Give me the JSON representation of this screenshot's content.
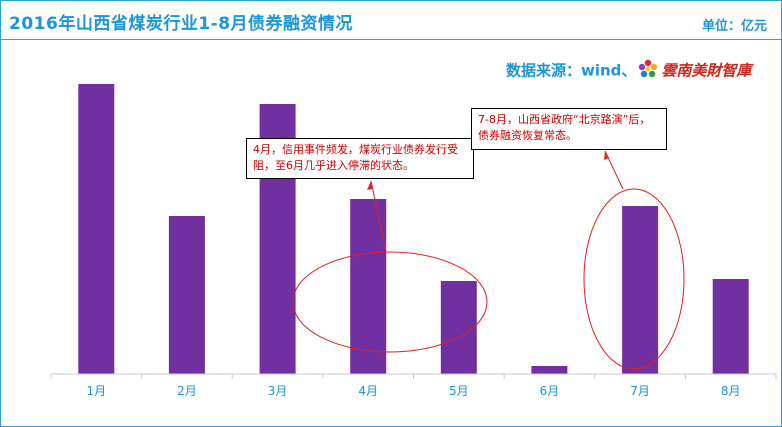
{
  "header": {
    "title": "2016年山西省煤炭行业1-8月债券融资情况",
    "unit": "单位：亿元",
    "source_prefix": "数据来源：wind、",
    "brand": "雲南美財智庫"
  },
  "annotations": {
    "april_note": "4月，信用事件频发，煤炭行业债券发行受阻，至6月几乎进入停滞的状态。",
    "july_note": "7-8月，山西省政府“北京路演”后，债券融资恢复常态。"
  },
  "colors": {
    "bar": "#7030a0",
    "accent": "#1c96d4",
    "note_text": "#cc0000",
    "ellipse": "#e02020"
  },
  "chart_data": {
    "type": "bar",
    "categories": [
      "1月",
      "2月",
      "3月",
      "4月",
      "5月",
      "6月",
      "7月",
      "8月"
    ],
    "values": [
      290,
      158,
      270,
      175,
      93,
      8,
      168,
      95
    ],
    "ylim": [
      0,
      330
    ],
    "grid": false,
    "legend": false,
    "title": "2016年山西省煤炭行业1-8月债券融资情况",
    "xlabel": "",
    "ylabel": "单位：亿元"
  }
}
